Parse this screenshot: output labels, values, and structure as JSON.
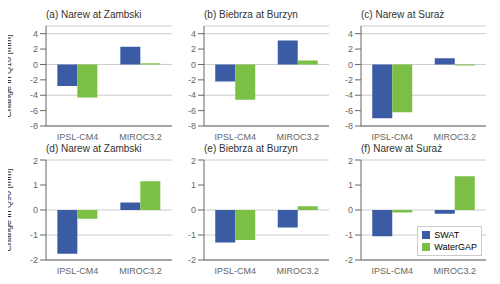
{
  "chart_data": [
    {
      "type": "bar",
      "title": "(a) Narew at Zambski",
      "categories": [
        "IPSL-CM4",
        "MIROC3.2"
      ],
      "series": [
        {
          "name": "SWAT",
          "color": "#3B5BA5",
          "values": [
            -2.8,
            2.3
          ]
        },
        {
          "name": "WaterGAP",
          "color": "#7BBF45",
          "values": [
            -4.3,
            0.15
          ]
        }
      ],
      "ylim": [
        -8,
        5
      ],
      "yticks": [
        -8,
        -6,
        -4,
        -2,
        0,
        2,
        4
      ],
      "grid": true,
      "y_label": "Change in Q10 [mm]"
    },
    {
      "type": "bar",
      "title": "(b) Biebrza at Burzyn",
      "categories": [
        "IPSL-CM4",
        "MIROC3.2"
      ],
      "series": [
        {
          "name": "SWAT",
          "color": "#3B5BA5",
          "values": [
            -2.2,
            3.1
          ]
        },
        {
          "name": "WaterGAP",
          "color": "#7BBF45",
          "values": [
            -4.6,
            0.5
          ]
        }
      ],
      "ylim": [
        -8,
        5
      ],
      "yticks": [
        -8,
        -6,
        -4,
        -2,
        0,
        2,
        4
      ],
      "grid": true
    },
    {
      "type": "bar",
      "title": "(c) Narew at Suraż",
      "categories": [
        "IPSL-CM4",
        "MIROC3.2"
      ],
      "series": [
        {
          "name": "SWAT",
          "color": "#3B5BA5",
          "values": [
            -7.0,
            0.8
          ]
        },
        {
          "name": "WaterGAP",
          "color": "#7BBF45",
          "values": [
            -6.2,
            -0.15
          ]
        }
      ],
      "ylim": [
        -8,
        5
      ],
      "yticks": [
        -8,
        -6,
        -4,
        -2,
        0,
        2,
        4
      ],
      "grid": true
    },
    {
      "type": "bar",
      "title": "(d) Narew at Zambski",
      "categories": [
        "IPSL-CM4",
        "MIROC3.2"
      ],
      "series": [
        {
          "name": "SWAT",
          "color": "#3B5BA5",
          "values": [
            -1.75,
            0.3
          ]
        },
        {
          "name": "WaterGAP",
          "color": "#7BBF45",
          "values": [
            -0.35,
            1.15
          ]
        }
      ],
      "ylim": [
        -2,
        2
      ],
      "yticks": [
        -2,
        -1,
        0,
        1,
        2
      ],
      "grid": true,
      "y_label": "Change in Q90 [mm]"
    },
    {
      "type": "bar",
      "title": "(e) Biebrza at Burzyn",
      "categories": [
        "IPSL-CM4",
        "MIROC3.2"
      ],
      "series": [
        {
          "name": "SWAT",
          "color": "#3B5BA5",
          "values": [
            -1.3,
            -0.7
          ]
        },
        {
          "name": "WaterGAP",
          "color": "#7BBF45",
          "values": [
            -1.2,
            0.15
          ]
        }
      ],
      "ylim": [
        -2,
        2
      ],
      "yticks": [
        -2,
        -1,
        0,
        1,
        2
      ],
      "grid": true
    },
    {
      "type": "bar",
      "title": "(f) Narew at Suraż",
      "categories": [
        "IPSL-CM4",
        "MIROC3.2"
      ],
      "series": [
        {
          "name": "SWAT",
          "color": "#3B5BA5",
          "values": [
            -1.05,
            -0.15
          ]
        },
        {
          "name": "WaterGAP",
          "color": "#7BBF45",
          "values": [
            -0.1,
            1.35
          ]
        }
      ],
      "ylim": [
        -2,
        2
      ],
      "yticks": [
        -2,
        -1,
        0,
        1,
        2
      ],
      "grid": true,
      "legend": "lower right"
    }
  ]
}
